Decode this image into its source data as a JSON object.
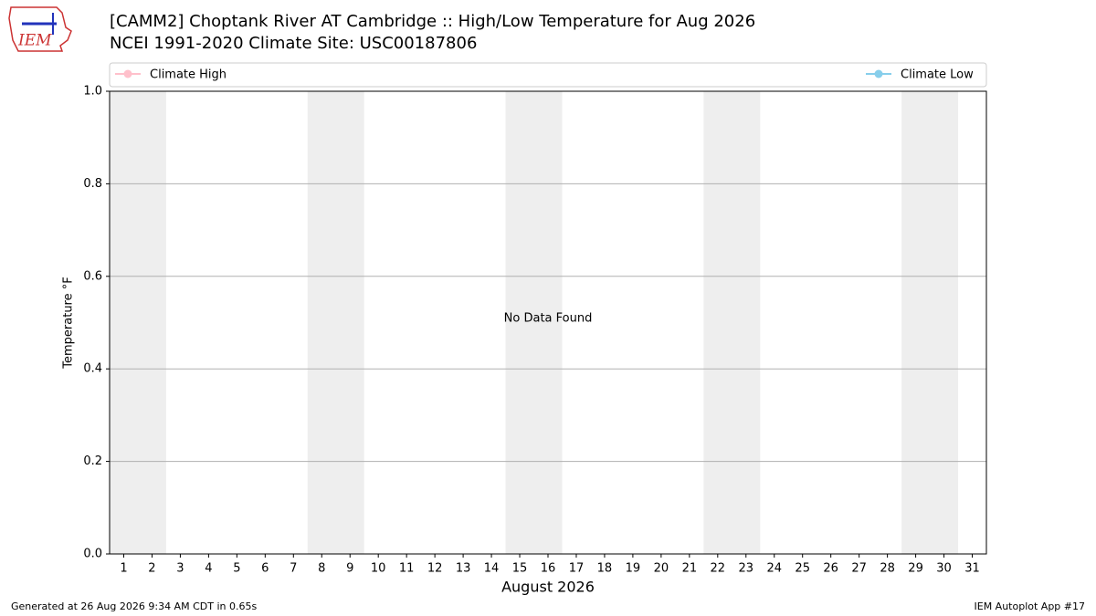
{
  "chart_data": {
    "type": "line",
    "title": "[CAMM2] Choptank River  AT Cambridge :: High/Low Temperature for Aug 2026",
    "subtitle": "NCEI 1991-2020 Climate Site: USC00187806",
    "logo": "IEM",
    "categories": [
      "1",
      "2",
      "3",
      "4",
      "5",
      "6",
      "7",
      "8",
      "9",
      "10",
      "11",
      "12",
      "13",
      "14",
      "15",
      "16",
      "17",
      "18",
      "19",
      "20",
      "21",
      "22",
      "23",
      "24",
      "25",
      "26",
      "27",
      "28",
      "29",
      "30",
      "31"
    ],
    "series": [
      {
        "name": "Climate High",
        "color": "pink",
        "values": [
          null,
          null,
          null,
          null,
          null,
          null,
          null,
          null,
          null,
          null,
          null,
          null,
          null,
          null,
          null,
          null,
          null,
          null,
          null,
          null,
          null,
          null,
          null,
          null,
          null,
          null,
          null,
          null,
          null,
          null,
          null
        ]
      },
      {
        "name": "Climate Low",
        "color": "skyblue",
        "values": [
          null,
          null,
          null,
          null,
          null,
          null,
          null,
          null,
          null,
          null,
          null,
          null,
          null,
          null,
          null,
          null,
          null,
          null,
          null,
          null,
          null,
          null,
          null,
          null,
          null,
          null,
          null,
          null,
          null,
          null,
          null
        ]
      }
    ],
    "shaded": [
      [
        0,
        1
      ],
      [
        7,
        8
      ],
      [
        14,
        15
      ],
      [
        21,
        22
      ],
      [
        28,
        29
      ]
    ],
    "xlabel": "August 2026",
    "ylabel": "Temperature °F",
    "ylim": [
      0,
      1
    ],
    "yticks": [
      {
        "value": 0,
        "label": "0.0"
      },
      0.2,
      0.4,
      0.6,
      0.8,
      {
        "value": 1,
        "label": "1.0"
      }
    ],
    "grid": true,
    "legend": "top",
    "annotation": "No Data Found",
    "footer_left": "Generated at 26 Aug 2026 9:34 AM CDT in 0.65s",
    "footer_right": "IEM Autoplot App #17"
  }
}
